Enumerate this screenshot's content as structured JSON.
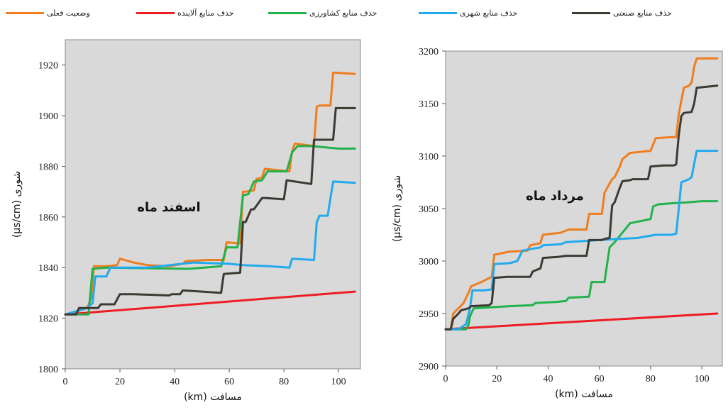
{
  "legend": {
    "items": [
      {
        "label": "حذف منابع صنعتی",
        "color": "#3d3a33"
      },
      {
        "label": "حذف منابع شهری",
        "color": "#22aaee"
      },
      {
        "label": "حذف منابع کشاورزی",
        "color": "#22b24c"
      },
      {
        "label": "حذف منابع آلاینده",
        "color": "#ee1c24"
      },
      {
        "label": "وضعیت فعلی",
        "color": "#f07d1e"
      }
    ]
  },
  "chart_data": [
    {
      "type": "line",
      "annotation": "اسفند ماه",
      "xlabel": "مسافت (km)",
      "ylabel": "شوری (µs/cm)",
      "xlim": [
        0,
        108
      ],
      "ylim": [
        1800,
        1930
      ],
      "xticks": [
        0,
        20,
        40,
        60,
        80,
        100
      ],
      "yticks": [
        1800,
        1820,
        1840,
        1860,
        1880,
        1900,
        1920
      ],
      "grid": false,
      "background": "#d9d9d9",
      "series": [
        {
          "name": "وضعیت فعلی",
          "color": "#f07d1e",
          "x": [
            0,
            5,
            8,
            9.5,
            10.5,
            15,
            19,
            20,
            25,
            30,
            38,
            43,
            44,
            52,
            58,
            59,
            64,
            65,
            66,
            69,
            70,
            72,
            73,
            82,
            83,
            84,
            91,
            92,
            93,
            97,
            98,
            106
          ],
          "y": [
            1821.5,
            1823,
            1824,
            1828,
            1840.5,
            1840.5,
            1841,
            1843.5,
            1842,
            1841,
            1840.5,
            1841.5,
            1842.5,
            1843,
            1843,
            1850,
            1849.5,
            1870,
            1870,
            1870.5,
            1875,
            1875.5,
            1879,
            1878,
            1886,
            1889,
            1888,
            1903.5,
            1904,
            1904,
            1917,
            1916.5
          ]
        },
        {
          "name": "حذف منابع آلاینده",
          "color": "#ee1c24",
          "x": [
            0,
            106
          ],
          "y": [
            1821.5,
            1830.5
          ]
        },
        {
          "name": "حذف منابع کشاورزی",
          "color": "#22b24c",
          "x": [
            0,
            3,
            8.5,
            10,
            15,
            25,
            45,
            57,
            59,
            63,
            65,
            67,
            69,
            72,
            74,
            81,
            83,
            85,
            90,
            100,
            106
          ],
          "y": [
            1821.5,
            1821.5,
            1821.5,
            1839.5,
            1840,
            1839.8,
            1839.5,
            1840.5,
            1848,
            1848,
            1868.5,
            1869,
            1874,
            1874.5,
            1878,
            1878,
            1885.5,
            1888,
            1888,
            1887,
            1887
          ]
        },
        {
          "name": "حذف منابع شهری",
          "color": "#22aaee",
          "x": [
            0,
            8,
            10,
            11,
            15,
            16.5,
            17,
            30,
            47,
            60,
            65,
            75,
            82,
            83,
            91,
            92,
            93,
            96,
            98,
            106
          ],
          "y": [
            1821.5,
            1824,
            1826,
            1836.5,
            1836.5,
            1840,
            1840,
            1840,
            1842,
            1841.5,
            1841,
            1840.5,
            1840,
            1843.5,
            1843,
            1858,
            1860.5,
            1860.5,
            1874,
            1873.5
          ]
        },
        {
          "name": "حذف منابع صنعتی",
          "color": "#3d3a33",
          "x": [
            0,
            4,
            5,
            9,
            12,
            13,
            18,
            20,
            25,
            38,
            39,
            42,
            43,
            50,
            57,
            58,
            64,
            65,
            66,
            68,
            69,
            72,
            73,
            80,
            81,
            90,
            91,
            93,
            98,
            99,
            106
          ],
          "y": [
            1821.5,
            1821.5,
            1824,
            1824,
            1824,
            1825.5,
            1825.5,
            1829.5,
            1829.5,
            1829,
            1829.5,
            1829.5,
            1831,
            1830.5,
            1830,
            1837.5,
            1838,
            1858,
            1858,
            1863,
            1863,
            1867.5,
            1867.5,
            1867,
            1874.5,
            1873,
            1890.5,
            1890.5,
            1890.5,
            1903,
            1903
          ]
        }
      ]
    },
    {
      "type": "line",
      "annotation": "مرداد ماه",
      "xlabel": "مسافت (km)",
      "ylabel": "شوری (µs/cm)",
      "xlim": [
        0,
        108
      ],
      "ylim": [
        2900,
        3200
      ],
      "xticks": [
        0,
        20,
        40,
        60,
        80,
        100
      ],
      "yticks": [
        2900,
        2950,
        3000,
        3050,
        3100,
        3150,
        3200
      ],
      "grid": false,
      "background": "#d9d9d9",
      "series": [
        {
          "name": "وضعیت فعلی",
          "color": "#f07d1e",
          "x": [
            0,
            2,
            3,
            5,
            7,
            8,
            9,
            10,
            14,
            18,
            19,
            25,
            32,
            33,
            37,
            38,
            45,
            48,
            55,
            56,
            61,
            62,
            65,
            66,
            68,
            69,
            72,
            80,
            82,
            88,
            90,
            91,
            93,
            95,
            96,
            97,
            98,
            106
          ],
          "y": [
            2935,
            2935,
            2950,
            2955,
            2960,
            2965,
            2970,
            2976,
            2980,
            2985,
            3006,
            3009,
            3010,
            3015,
            3017,
            3025,
            3027,
            3030,
            3030,
            3045,
            3045,
            3065,
            3078,
            3080,
            3090,
            3097,
            3103,
            3105,
            3117,
            3118,
            3118,
            3140,
            3165,
            3167,
            3170,
            3185,
            3193,
            3193
          ]
        },
        {
          "name": "حذف منابع آلاینده",
          "color": "#ee1c24",
          "x": [
            0,
            106
          ],
          "y": [
            2935,
            2950
          ]
        },
        {
          "name": "حذف منابع کشاورزی",
          "color": "#22b24c",
          "x": [
            0,
            8,
            9,
            9.5,
            10,
            11,
            25,
            34,
            35,
            43,
            47,
            48,
            56,
            57,
            62,
            64,
            66,
            70,
            72,
            80,
            81,
            83,
            88,
            95,
            100,
            106
          ],
          "y": [
            2935,
            2935,
            2940,
            2947,
            2950,
            2955,
            2957,
            2958,
            2960,
            2961,
            2962,
            2965,
            2966,
            2980,
            2980,
            3013,
            3018,
            3030,
            3036,
            3040,
            3052,
            3054,
            3055,
            3056,
            3057,
            3057
          ]
        },
        {
          "name": "حذف منابع شهری",
          "color": "#22aaee",
          "x": [
            0,
            5,
            8,
            9.5,
            10.5,
            15,
            18,
            19,
            25,
            28,
            29,
            30,
            37,
            38,
            45,
            47,
            60,
            75,
            82,
            88,
            90,
            91,
            92,
            95,
            96,
            98,
            106
          ],
          "y": [
            2935,
            2935,
            2940,
            2955,
            2972,
            2972,
            2973,
            2997,
            2998,
            3000,
            3005,
            3010,
            3013,
            3015,
            3016,
            3018,
            3020,
            3022,
            3025,
            3025,
            3026,
            3050,
            3075,
            3078,
            3080,
            3105,
            3105
          ]
        },
        {
          "name": "حذف منابع صنعتی",
          "color": "#3d3a33",
          "x": [
            0,
            2,
            3,
            5,
            6,
            9,
            10,
            17,
            18,
            19,
            24,
            33,
            34,
            36,
            37,
            38,
            44,
            47,
            55,
            56,
            61,
            62,
            64,
            65,
            66,
            68,
            69,
            72,
            73,
            79,
            80,
            85,
            89,
            90,
            91,
            92,
            93,
            96,
            97,
            98,
            106
          ],
          "y": [
            2935,
            2935,
            2945,
            2950,
            2953,
            2955,
            2957,
            2958,
            2960,
            2984,
            2985,
            2985,
            2990,
            2992,
            2993,
            3003,
            3004,
            3005,
            3005,
            3020,
            3020,
            3021,
            3022,
            3053,
            3056,
            3070,
            3076,
            3077,
            3078,
            3078,
            3090,
            3091,
            3091,
            3092,
            3120,
            3138,
            3141,
            3142,
            3150,
            3165,
            3167
          ]
        }
      ]
    }
  ]
}
